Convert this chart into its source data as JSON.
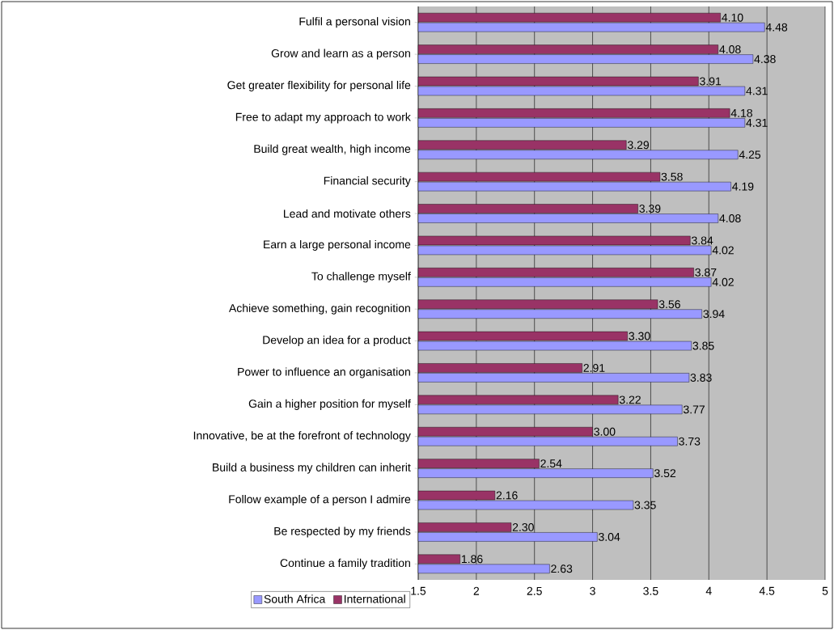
{
  "chart_data": {
    "type": "bar",
    "orientation": "horizontal",
    "categories": [
      "Fulfil a personal vision",
      "Grow and learn as a person",
      "Get greater flexibility for personal life",
      "Free to adapt my approach to work",
      "Build great wealth, high income",
      "Financial security",
      "Lead and motivate others",
      "Earn a large personal income",
      "To challenge myself",
      "Achieve something, gain recognition",
      "Develop an idea for a product",
      "Power to influence an organisation",
      "Gain a higher position for myself",
      "Innovative, be at the forefront of technology",
      "Build a business my children can inherit",
      "Follow example of a person I admire",
      "Be respected by my friends",
      "Continue a family tradition"
    ],
    "series": [
      {
        "name": "South Africa",
        "color": "#9999ff",
        "values": [
          4.48,
          4.38,
          4.31,
          4.31,
          4.25,
          4.19,
          4.08,
          4.02,
          4.02,
          3.94,
          3.85,
          3.83,
          3.77,
          3.73,
          3.52,
          3.35,
          3.04,
          2.63
        ],
        "value_labels": [
          "4.48",
          "4.38",
          "4.31",
          "4.31",
          "4.25",
          "4.19",
          "4.08",
          "4.02",
          "4.02",
          "3.94",
          "3.85",
          "3.83",
          "3.77",
          "3.73",
          "3.52",
          "3.35",
          "3.04",
          "2.63"
        ]
      },
      {
        "name": "International",
        "color": "#993366",
        "values": [
          4.1,
          4.08,
          3.91,
          4.18,
          3.29,
          3.58,
          3.39,
          3.84,
          3.87,
          3.56,
          3.3,
          2.91,
          3.22,
          3.0,
          2.54,
          2.16,
          2.3,
          1.86
        ],
        "value_labels": [
          "4.10",
          "4.08",
          "3.91",
          "4.18",
          "3.29",
          "3.58",
          "3.39",
          "3.84",
          "3.87",
          "3.56",
          "3.30",
          "2.91",
          "3.22",
          "3.00",
          "2.54",
          "2.16",
          "2.30",
          "1.86"
        ]
      }
    ],
    "xlim": [
      1.5,
      5
    ],
    "xticks": [
      1.5,
      2,
      2.5,
      3,
      3.5,
      4,
      4.5,
      5
    ],
    "grid": "x",
    "legend": "bottom left"
  }
}
